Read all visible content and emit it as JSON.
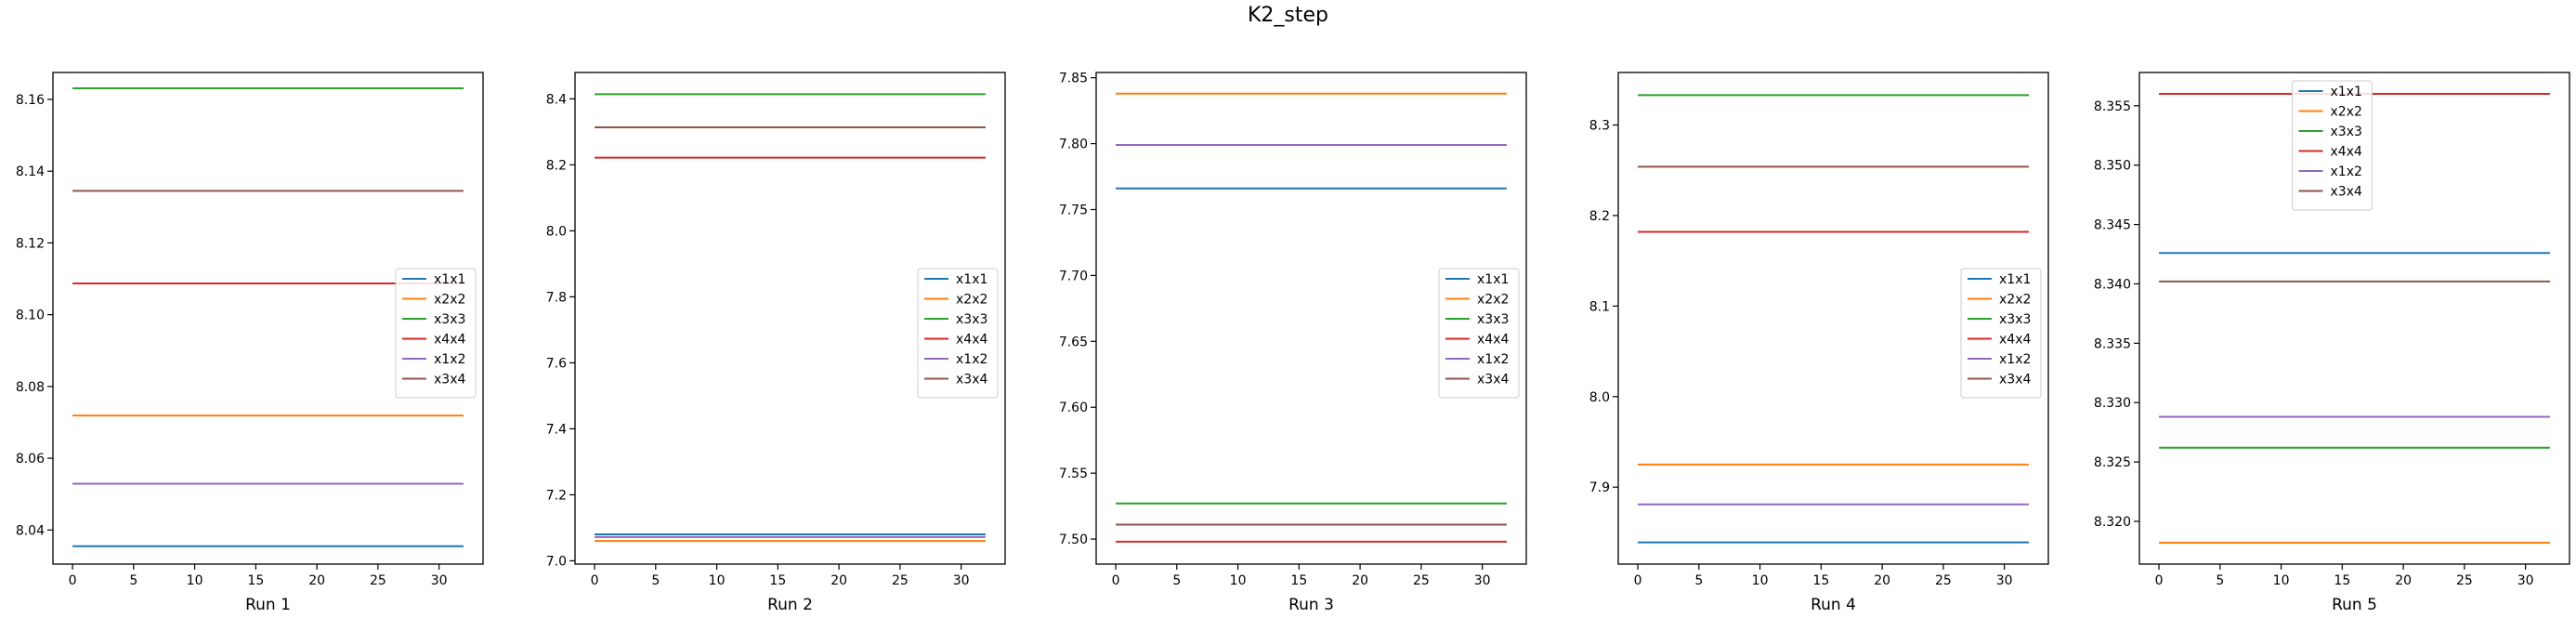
{
  "figure": {
    "title": "K2_step"
  },
  "colors": {
    "x1x1": "#1f77b4",
    "x2x2": "#ff7f0e",
    "x3x3": "#2ca02c",
    "x4x4": "#d62728",
    "x1x2": "#9467bd",
    "x3x4": "#8c564b"
  },
  "chart_data": [
    {
      "type": "line",
      "xlabel": "Run 1",
      "x": [
        0,
        32
      ],
      "xticks": [
        0,
        5,
        10,
        15,
        20,
        25,
        30
      ],
      "ylim": [
        8.0305,
        8.1675
      ],
      "yticks": [
        8.04,
        8.06,
        8.08,
        8.1,
        8.12,
        8.14,
        8.16
      ],
      "ytick_labels": [
        "8.04",
        "8.06",
        "8.08",
        "8.10",
        "8.12",
        "8.14",
        "8.16"
      ],
      "legend": "center-right",
      "series": [
        {
          "name": "x1x1",
          "values": [
            8.0355,
            8.0355
          ]
        },
        {
          "name": "x2x2",
          "values": [
            8.0719,
            8.0719
          ]
        },
        {
          "name": "x3x3",
          "values": [
            8.1631,
            8.1631
          ]
        },
        {
          "name": "x4x4",
          "values": [
            8.1087,
            8.1087
          ]
        },
        {
          "name": "x1x2",
          "values": [
            8.0529,
            8.0529
          ]
        },
        {
          "name": "x3x4",
          "values": [
            8.1345,
            8.1345
          ]
        }
      ]
    },
    {
      "type": "line",
      "xlabel": "Run 2",
      "x": [
        0,
        32
      ],
      "xticks": [
        0,
        5,
        10,
        15,
        20,
        25,
        30
      ],
      "ylim": [
        6.99,
        8.48
      ],
      "yticks": [
        7.0,
        7.2,
        7.4,
        7.6,
        7.8,
        8.0,
        8.2,
        8.4
      ],
      "ytick_labels": [
        "7.0",
        "7.2",
        "7.4",
        "7.6",
        "7.8",
        "8.0",
        "8.2",
        "8.4"
      ],
      "legend": "center-right",
      "series": [
        {
          "name": "x1x1",
          "values": [
            7.08,
            7.08
          ]
        },
        {
          "name": "x2x2",
          "values": [
            7.06,
            7.06
          ]
        },
        {
          "name": "x3x3",
          "values": [
            8.414,
            8.414
          ]
        },
        {
          "name": "x4x4",
          "values": [
            8.222,
            8.222
          ]
        },
        {
          "name": "x1x2",
          "values": [
            7.072,
            7.072
          ]
        },
        {
          "name": "x3x4",
          "values": [
            8.314,
            8.314
          ]
        }
      ]
    },
    {
      "type": "line",
      "xlabel": "Run 3",
      "x": [
        0,
        32
      ],
      "xticks": [
        0,
        5,
        10,
        15,
        20,
        25,
        30
      ],
      "ylim": [
        7.481,
        7.854
      ],
      "yticks": [
        7.5,
        7.55,
        7.6,
        7.65,
        7.7,
        7.75,
        7.8,
        7.85
      ],
      "ytick_labels": [
        "7.50",
        "7.55",
        "7.60",
        "7.65",
        "7.70",
        "7.75",
        "7.80",
        "7.85"
      ],
      "legend": "center-right",
      "series": [
        {
          "name": "x1x1",
          "values": [
            7.766,
            7.766
          ]
        },
        {
          "name": "x2x2",
          "values": [
            7.838,
            7.838
          ]
        },
        {
          "name": "x3x3",
          "values": [
            7.527,
            7.527
          ]
        },
        {
          "name": "x4x4",
          "values": [
            7.498,
            7.498
          ]
        },
        {
          "name": "x1x2",
          "values": [
            7.799,
            7.799
          ]
        },
        {
          "name": "x3x4",
          "values": [
            7.511,
            7.511
          ]
        }
      ]
    },
    {
      "type": "line",
      "xlabel": "Run 4",
      "x": [
        0,
        32
      ],
      "xticks": [
        0,
        5,
        10,
        15,
        20,
        25,
        30
      ],
      "ylim": [
        7.815,
        8.358
      ],
      "yticks": [
        7.9,
        8.0,
        8.1,
        8.2,
        8.3
      ],
      "ytick_labels": [
        "7.9",
        "8.0",
        "8.1",
        "8.2",
        "8.3"
      ],
      "legend": "center-right",
      "series": [
        {
          "name": "x1x1",
          "values": [
            7.839,
            7.839
          ]
        },
        {
          "name": "x2x2",
          "values": [
            7.925,
            7.925
          ]
        },
        {
          "name": "x3x3",
          "values": [
            8.333,
            8.333
          ]
        },
        {
          "name": "x4x4",
          "values": [
            8.182,
            8.182
          ]
        },
        {
          "name": "x1x2",
          "values": [
            7.881,
            7.881
          ]
        },
        {
          "name": "x3x4",
          "values": [
            8.254,
            8.254
          ]
        }
      ]
    },
    {
      "type": "line",
      "xlabel": "Run 5",
      "x": [
        0,
        32
      ],
      "xticks": [
        0,
        5,
        10,
        15,
        20,
        25,
        30
      ],
      "ylim": [
        8.3164,
        8.3578
      ],
      "yticks": [
        8.32,
        8.325,
        8.33,
        8.335,
        8.34,
        8.345,
        8.35,
        8.355
      ],
      "ytick_labels": [
        "8.320",
        "8.325",
        "8.330",
        "8.335",
        "8.340",
        "8.345",
        "8.350",
        "8.355"
      ],
      "legend": "upper-center",
      "series": [
        {
          "name": "x1x1",
          "values": [
            8.3426,
            8.3426
          ]
        },
        {
          "name": "x2x2",
          "values": [
            8.3182,
            8.3182
          ]
        },
        {
          "name": "x3x3",
          "values": [
            8.3262,
            8.3262
          ]
        },
        {
          "name": "x4x4",
          "values": [
            8.356,
            8.356
          ]
        },
        {
          "name": "x1x2",
          "values": [
            8.3288,
            8.3288
          ]
        },
        {
          "name": "x3x4",
          "values": [
            8.3402,
            8.3402
          ]
        }
      ]
    }
  ]
}
